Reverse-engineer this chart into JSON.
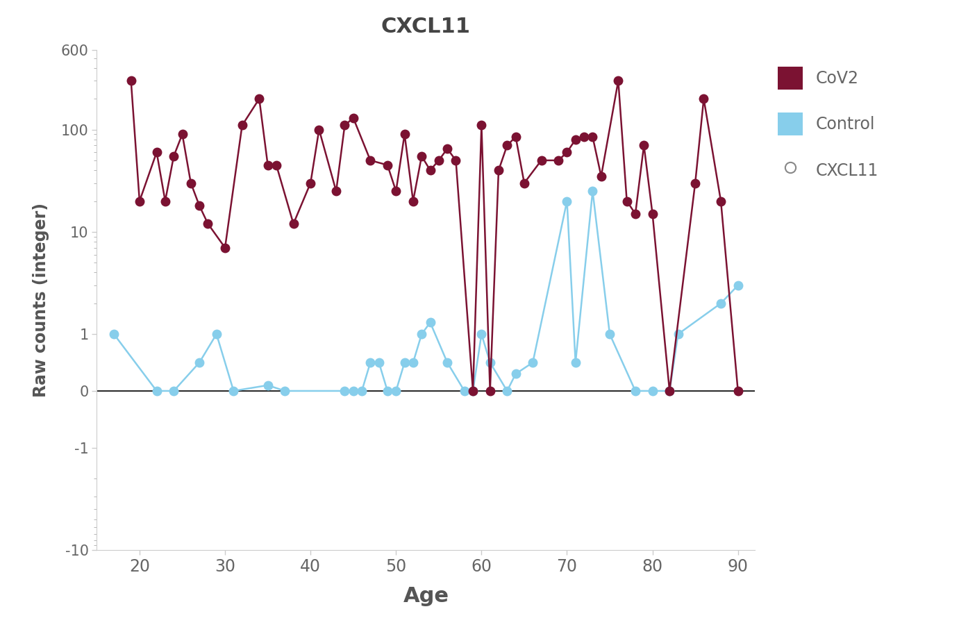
{
  "title": "CXCL11",
  "xlabel": "Age",
  "ylabel": "Raw counts (integer)",
  "cov2_color": "#7B1232",
  "control_color": "#87CEEB",
  "background_color": "#FFFFFF",
  "cov2_ages": [
    19,
    20,
    22,
    23,
    24,
    25,
    26,
    27,
    28,
    30,
    32,
    34,
    35,
    36,
    38,
    40,
    41,
    43,
    44,
    45,
    47,
    49,
    50,
    51,
    52,
    53,
    54,
    55,
    56,
    57,
    59,
    60,
    61,
    62,
    63,
    64,
    65,
    67,
    69,
    70,
    71,
    72,
    73,
    74,
    76,
    77,
    78,
    79,
    80,
    82,
    85,
    86,
    88,
    90
  ],
  "cov2_values": [
    300,
    20,
    60,
    20,
    55,
    90,
    30,
    18,
    12,
    7,
    110,
    200,
    45,
    45,
    12,
    30,
    100,
    25,
    110,
    130,
    50,
    45,
    25,
    90,
    20,
    55,
    40,
    50,
    65,
    50,
    0,
    110,
    0,
    40,
    70,
    85,
    30,
    50,
    50,
    60,
    80,
    85,
    85,
    35,
    300,
    20,
    15,
    70,
    15,
    0,
    30,
    200,
    20,
    0
  ],
  "control_ages": [
    17,
    22,
    24,
    27,
    29,
    31,
    35,
    37,
    44,
    45,
    46,
    47,
    48,
    49,
    50,
    51,
    52,
    53,
    54,
    56,
    58,
    59,
    60,
    61,
    63,
    64,
    66,
    70,
    71,
    73,
    75,
    78,
    80,
    82,
    83,
    88,
    90
  ],
  "control_values": [
    1,
    0,
    0,
    0.5,
    1,
    0,
    0.1,
    0,
    0,
    0,
    0,
    0.5,
    0.5,
    0,
    0,
    0.5,
    0.5,
    1,
    1.3,
    0.5,
    0,
    0,
    1,
    0.5,
    0,
    0.3,
    0.5,
    20,
    0.5,
    25,
    1,
    0,
    0,
    0,
    1,
    2,
    3
  ],
  "ylim_bottom": -10,
  "ylim_top": 600,
  "xlim_left": 15,
  "xlim_right": 92,
  "xticks": [
    20,
    30,
    40,
    50,
    60,
    70,
    80,
    90
  ],
  "yticks": [
    -10,
    -1,
    0,
    1,
    10,
    100,
    600
  ],
  "linthresh": 1,
  "linscale": 0.5
}
